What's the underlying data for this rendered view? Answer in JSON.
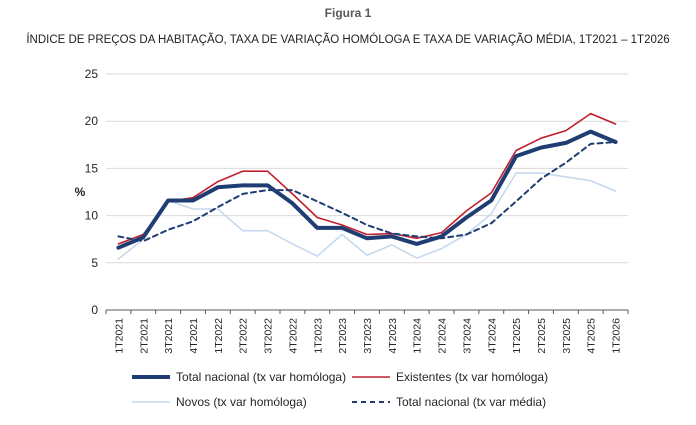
{
  "figure_label": "Figura 1",
  "chart_data": {
    "type": "line",
    "title": "ÍNDICE DE PREÇOS DA HABITAÇÃO, TAXA DE VARIAÇÃO HOMÓLOGA E TAXA DE VARIAÇÃO MÉDIA, 1T2021 – 1T2026",
    "xlabel": "",
    "ylabel": "%",
    "ylim": [
      0,
      25
    ],
    "yticks": [
      0,
      5,
      10,
      15,
      20,
      25
    ],
    "grid": "horizontal",
    "legend_position": "bottom",
    "categories": [
      "1T2021",
      "2T2021",
      "3T2021",
      "4T2021",
      "1T2022",
      "2T2022",
      "3T2022",
      "4T2022",
      "1T2023",
      "2T2023",
      "3T2023",
      "4T2023",
      "1T2024",
      "2T2024",
      "3T2024",
      "4T2024",
      "1T2025",
      "2T2025",
      "3T2025",
      "4T2025",
      "1T2026"
    ],
    "series": [
      {
        "name": "Total nacional (tx var homóloga)",
        "color": "#1f3d73",
        "style": "solid-thick",
        "values": [
          6.6,
          7.7,
          11.6,
          11.6,
          13.0,
          13.2,
          13.2,
          11.3,
          8.7,
          8.7,
          7.6,
          7.8,
          7.0,
          7.8,
          9.8,
          11.6,
          16.3,
          17.2,
          17.7,
          18.9,
          17.8
        ]
      },
      {
        "name": "Existentes (tx var homóloga)",
        "color": "#c0202e",
        "style": "solid",
        "values": [
          7.0,
          8.0,
          11.5,
          11.9,
          13.6,
          14.7,
          14.7,
          12.3,
          9.8,
          9.0,
          8.0,
          8.1,
          7.6,
          8.2,
          10.5,
          12.4,
          16.9,
          18.2,
          19.0,
          20.8,
          19.7
        ]
      },
      {
        "name": "Novos (tx var homóloga)",
        "color": "#c6d9ef",
        "style": "solid",
        "values": [
          5.4,
          7.5,
          11.6,
          10.7,
          10.7,
          8.4,
          8.4,
          7.0,
          5.7,
          8.0,
          5.8,
          6.9,
          5.5,
          6.5,
          8.0,
          10.2,
          14.5,
          14.5,
          14.1,
          13.7,
          12.6
        ]
      },
      {
        "name": "Total nacional (tx var média)",
        "color": "#1f3d73",
        "style": "dashed",
        "values": [
          7.8,
          7.3,
          8.5,
          9.4,
          10.9,
          12.3,
          12.7,
          12.7,
          11.5,
          10.3,
          9.0,
          8.1,
          7.8,
          7.6,
          8.0,
          9.2,
          11.5,
          13.9,
          15.6,
          17.6,
          17.8
        ]
      }
    ]
  }
}
